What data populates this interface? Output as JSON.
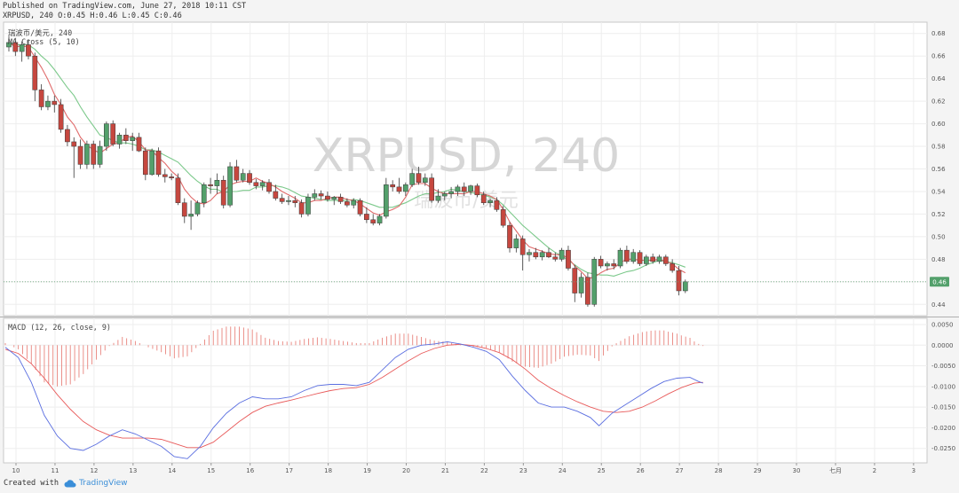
{
  "header": {
    "line1": "Published on TradingView.com, June 27, 2018 10:11 CST",
    "line2": "XRPUSD, 240 O:0.45 H:0.46 L:0.45 C:0.46"
  },
  "footer": {
    "created_with": "Created with",
    "brand": "TradingView"
  },
  "chart_data": {
    "type": "candlestick",
    "symbol_label": "瑞波币/美元, 240",
    "indicator_label": "MA Cross (5, 10)",
    "watermark": "XRPUSD, 240",
    "watermark_sub": "瑞波币/美元",
    "ylim": [
      0.43,
      0.69
    ],
    "y_ticks": [
      "0.68",
      "0.66",
      "0.64",
      "0.62",
      "0.60",
      "0.58",
      "0.56",
      "0.54",
      "0.52",
      "0.50",
      "0.48",
      "0.46",
      "0.44"
    ],
    "last_price": 0.46,
    "last_price_label": "0.46",
    "x_ticks": [
      {
        "label": "10",
        "day": 10
      },
      {
        "label": "11",
        "day": 11
      },
      {
        "label": "12",
        "day": 12
      },
      {
        "label": "13",
        "day": 13
      },
      {
        "label": "14",
        "day": 14
      },
      {
        "label": "15",
        "day": 15
      },
      {
        "label": "16",
        "day": 16
      },
      {
        "label": "17",
        "day": 17
      },
      {
        "label": "18",
        "day": 18
      },
      {
        "label": "19",
        "day": 19
      },
      {
        "label": "20",
        "day": 20
      },
      {
        "label": "21",
        "day": 21
      },
      {
        "label": "22",
        "day": 22
      },
      {
        "label": "23",
        "day": 23
      },
      {
        "label": "24",
        "day": 24
      },
      {
        "label": "25",
        "day": 25
      },
      {
        "label": "26",
        "day": 26
      },
      {
        "label": "27",
        "day": 27
      },
      {
        "label": "28",
        "day": 28
      },
      {
        "label": "29",
        "day": 29
      },
      {
        "label": "30",
        "day": 30
      },
      {
        "label": "七月",
        "day": 31
      },
      {
        "label": "2",
        "day": 32
      },
      {
        "label": "3",
        "day": 33
      }
    ],
    "candles": [
      [
        0.668,
        0.678,
        0.664,
        0.672
      ],
      [
        0.672,
        0.676,
        0.66,
        0.664
      ],
      [
        0.664,
        0.673,
        0.655,
        0.67
      ],
      [
        0.67,
        0.675,
        0.657,
        0.66
      ],
      [
        0.66,
        0.663,
        0.62,
        0.63
      ],
      [
        0.63,
        0.635,
        0.612,
        0.615
      ],
      [
        0.615,
        0.625,
        0.612,
        0.62
      ],
      [
        0.62,
        0.625,
        0.61,
        0.617
      ],
      [
        0.617,
        0.622,
        0.592,
        0.595
      ],
      [
        0.595,
        0.599,
        0.58,
        0.584
      ],
      [
        0.584,
        0.588,
        0.552,
        0.58
      ],
      [
        0.58,
        0.586,
        0.56,
        0.564
      ],
      [
        0.564,
        0.585,
        0.56,
        0.582
      ],
      [
        0.582,
        0.585,
        0.56,
        0.564
      ],
      [
        0.564,
        0.585,
        0.561,
        0.58
      ],
      [
        0.58,
        0.602,
        0.576,
        0.6
      ],
      [
        0.6,
        0.603,
        0.58,
        0.582
      ],
      [
        0.582,
        0.592,
        0.578,
        0.59
      ],
      [
        0.59,
        0.596,
        0.582,
        0.585
      ],
      [
        0.585,
        0.592,
        0.576,
        0.588
      ],
      [
        0.588,
        0.592,
        0.575,
        0.576
      ],
      [
        0.576,
        0.579,
        0.55,
        0.555
      ],
      [
        0.555,
        0.578,
        0.554,
        0.576
      ],
      [
        0.576,
        0.579,
        0.553,
        0.555
      ],
      [
        0.555,
        0.56,
        0.548,
        0.553
      ],
      [
        0.553,
        0.556,
        0.55,
        0.552
      ],
      [
        0.552,
        0.556,
        0.528,
        0.53
      ],
      [
        0.53,
        0.534,
        0.512,
        0.518
      ],
      [
        0.518,
        0.532,
        0.506,
        0.52
      ],
      [
        0.52,
        0.532,
        0.518,
        0.53
      ],
      [
        0.53,
        0.548,
        0.526,
        0.546
      ],
      [
        0.546,
        0.552,
        0.538,
        0.545
      ],
      [
        0.545,
        0.556,
        0.538,
        0.55
      ],
      [
        0.55,
        0.554,
        0.525,
        0.528
      ],
      [
        0.528,
        0.566,
        0.526,
        0.562
      ],
      [
        0.562,
        0.568,
        0.548,
        0.55
      ],
      [
        0.55,
        0.56,
        0.548,
        0.556
      ],
      [
        0.556,
        0.559,
        0.546,
        0.548
      ],
      [
        0.548,
        0.551,
        0.542,
        0.545
      ],
      [
        0.545,
        0.55,
        0.541,
        0.548
      ],
      [
        0.548,
        0.551,
        0.538,
        0.54
      ],
      [
        0.54,
        0.546,
        0.532,
        0.534
      ],
      [
        0.534,
        0.538,
        0.529,
        0.531
      ],
      [
        0.531,
        0.536,
        0.528,
        0.532
      ],
      [
        0.532,
        0.536,
        0.526,
        0.53
      ],
      [
        0.53,
        0.533,
        0.517,
        0.52
      ],
      [
        0.52,
        0.538,
        0.518,
        0.535
      ],
      [
        0.535,
        0.542,
        0.532,
        0.538
      ],
      [
        0.538,
        0.541,
        0.533,
        0.536
      ],
      [
        0.536,
        0.54,
        0.531,
        0.533
      ],
      [
        0.533,
        0.536,
        0.528,
        0.535
      ],
      [
        0.535,
        0.538,
        0.529,
        0.531
      ],
      [
        0.531,
        0.534,
        0.526,
        0.528
      ],
      [
        0.528,
        0.534,
        0.525,
        0.532
      ],
      [
        0.532,
        0.534,
        0.518,
        0.52
      ],
      [
        0.52,
        0.526,
        0.512,
        0.515
      ],
      [
        0.515,
        0.52,
        0.51,
        0.512
      ],
      [
        0.512,
        0.52,
        0.51,
        0.518
      ],
      [
        0.518,
        0.552,
        0.516,
        0.546
      ],
      [
        0.546,
        0.55,
        0.54,
        0.544
      ],
      [
        0.544,
        0.552,
        0.538,
        0.54
      ],
      [
        0.54,
        0.548,
        0.536,
        0.546
      ],
      [
        0.546,
        0.56,
        0.544,
        0.556
      ],
      [
        0.556,
        0.562,
        0.546,
        0.548
      ],
      [
        0.548,
        0.556,
        0.545,
        0.552
      ],
      [
        0.552,
        0.556,
        0.53,
        0.532
      ],
      [
        0.532,
        0.542,
        0.53,
        0.536
      ],
      [
        0.536,
        0.54,
        0.532,
        0.538
      ],
      [
        0.538,
        0.544,
        0.534,
        0.54
      ],
      [
        0.54,
        0.546,
        0.536,
        0.544
      ],
      [
        0.544,
        0.548,
        0.536,
        0.54
      ],
      [
        0.54,
        0.546,
        0.537,
        0.545
      ],
      [
        0.545,
        0.547,
        0.535,
        0.537
      ],
      [
        0.537,
        0.54,
        0.528,
        0.53
      ],
      [
        0.53,
        0.534,
        0.526,
        0.532
      ],
      [
        0.532,
        0.535,
        0.522,
        0.524
      ],
      [
        0.524,
        0.527,
        0.508,
        0.51
      ],
      [
        0.51,
        0.513,
        0.486,
        0.49
      ],
      [
        0.49,
        0.502,
        0.486,
        0.498
      ],
      [
        0.498,
        0.501,
        0.47,
        0.484
      ],
      [
        0.484,
        0.489,
        0.478,
        0.486
      ],
      [
        0.486,
        0.49,
        0.48,
        0.482
      ],
      [
        0.482,
        0.488,
        0.479,
        0.486
      ],
      [
        0.486,
        0.49,
        0.481,
        0.482
      ],
      [
        0.482,
        0.486,
        0.478,
        0.48
      ],
      [
        0.48,
        0.49,
        0.478,
        0.488
      ],
      [
        0.488,
        0.492,
        0.47,
        0.472
      ],
      [
        0.472,
        0.475,
        0.442,
        0.45
      ],
      [
        0.45,
        0.468,
        0.446,
        0.464
      ],
      [
        0.464,
        0.468,
        0.438,
        0.44
      ],
      [
        0.44,
        0.482,
        0.438,
        0.48
      ],
      [
        0.48,
        0.483,
        0.472,
        0.474
      ],
      [
        0.474,
        0.478,
        0.47,
        0.476
      ],
      [
        0.476,
        0.48,
        0.471,
        0.474
      ],
      [
        0.474,
        0.49,
        0.472,
        0.488
      ],
      [
        0.488,
        0.492,
        0.476,
        0.478
      ],
      [
        0.478,
        0.489,
        0.476,
        0.486
      ],
      [
        0.486,
        0.488,
        0.474,
        0.476
      ],
      [
        0.476,
        0.484,
        0.474,
        0.482
      ],
      [
        0.482,
        0.485,
        0.476,
        0.478
      ],
      [
        0.478,
        0.484,
        0.476,
        0.482
      ],
      [
        0.482,
        0.484,
        0.474,
        0.476
      ],
      [
        0.476,
        0.48,
        0.468,
        0.47
      ],
      [
        0.47,
        0.474,
        0.448,
        0.452
      ],
      [
        0.452,
        0.462,
        0.45,
        0.46
      ]
    ],
    "ma_fast": [
      0.672,
      0.668,
      0.669,
      0.668,
      0.659,
      0.65,
      0.639,
      0.626,
      0.617,
      0.606,
      0.599,
      0.588,
      0.581,
      0.577,
      0.574,
      0.578,
      0.582,
      0.583,
      0.588,
      0.589,
      0.584,
      0.577,
      0.576,
      0.57,
      0.565,
      0.558,
      0.553,
      0.542,
      0.535,
      0.53,
      0.529,
      0.532,
      0.538,
      0.54,
      0.546,
      0.548,
      0.549,
      0.549,
      0.552,
      0.549,
      0.547,
      0.544,
      0.54,
      0.537,
      0.534,
      0.53,
      0.53,
      0.532,
      0.532,
      0.534,
      0.535,
      0.535,
      0.533,
      0.532,
      0.529,
      0.525,
      0.521,
      0.519,
      0.522,
      0.524,
      0.527,
      0.535,
      0.546,
      0.547,
      0.547,
      0.543,
      0.54,
      0.538,
      0.538,
      0.538,
      0.538,
      0.54,
      0.54,
      0.538,
      0.536,
      0.533,
      0.524,
      0.513,
      0.505,
      0.497,
      0.491,
      0.489,
      0.487,
      0.485,
      0.484,
      0.484,
      0.481,
      0.474,
      0.469,
      0.463,
      0.464,
      0.468,
      0.471,
      0.472,
      0.477,
      0.48,
      0.48,
      0.479,
      0.479,
      0.479,
      0.48,
      0.478,
      0.476,
      0.471,
      0.468
    ],
    "ma_slow": [
      0.672,
      0.67,
      0.67,
      0.67,
      0.666,
      0.66,
      0.655,
      0.648,
      0.64,
      0.632,
      0.625,
      0.615,
      0.606,
      0.598,
      0.59,
      0.588,
      0.585,
      0.583,
      0.583,
      0.582,
      0.58,
      0.577,
      0.577,
      0.575,
      0.572,
      0.569,
      0.566,
      0.56,
      0.554,
      0.549,
      0.545,
      0.542,
      0.542,
      0.539,
      0.54,
      0.54,
      0.541,
      0.541,
      0.544,
      0.544,
      0.545,
      0.545,
      0.544,
      0.542,
      0.539,
      0.536,
      0.535,
      0.534,
      0.533,
      0.532,
      0.532,
      0.532,
      0.532,
      0.533,
      0.532,
      0.53,
      0.528,
      0.526,
      0.526,
      0.526,
      0.528,
      0.53,
      0.533,
      0.536,
      0.538,
      0.538,
      0.539,
      0.54,
      0.542,
      0.541,
      0.54,
      0.539,
      0.538,
      0.537,
      0.535,
      0.533,
      0.528,
      0.522,
      0.516,
      0.51,
      0.505,
      0.5,
      0.495,
      0.49,
      0.486,
      0.483,
      0.479,
      0.475,
      0.471,
      0.468,
      0.467,
      0.466,
      0.466,
      0.465,
      0.467,
      0.469,
      0.47,
      0.472,
      0.475,
      0.477,
      0.479,
      0.478,
      0.477,
      0.475,
      0.473
    ],
    "macd": {
      "label": "MACD (12, 26, close, 9)",
      "ylim": [
        -0.0285,
        0.0065
      ],
      "y_ticks": [
        "0.0050",
        "0.0000",
        "-0.0050",
        "-0.0100",
        "-0.0150",
        "-0.0200",
        "-0.0250"
      ],
      "macd_line": [
        [
          0,
          -0.0005
        ],
        [
          3,
          -0.003
        ],
        [
          6,
          -0.009
        ],
        [
          9,
          -0.017
        ],
        [
          12,
          -0.022
        ],
        [
          15,
          -0.025
        ],
        [
          18,
          -0.0255
        ],
        [
          21,
          -0.024
        ],
        [
          24,
          -0.022
        ],
        [
          27,
          -0.0205
        ],
        [
          30,
          -0.0215
        ],
        [
          33,
          -0.023
        ],
        [
          36,
          -0.0245
        ],
        [
          39,
          -0.027
        ],
        [
          42,
          -0.0275
        ],
        [
          45,
          -0.0245
        ],
        [
          48,
          -0.02
        ],
        [
          51,
          -0.0165
        ],
        [
          54,
          -0.014
        ],
        [
          57,
          -0.0125
        ],
        [
          60,
          -0.013
        ],
        [
          63,
          -0.013
        ],
        [
          66,
          -0.0125
        ],
        [
          69,
          -0.011
        ],
        [
          72,
          -0.0098
        ],
        [
          75,
          -0.0095
        ],
        [
          78,
          -0.0095
        ],
        [
          81,
          -0.0098
        ],
        [
          84,
          -0.009
        ],
        [
          87,
          -0.006
        ],
        [
          90,
          -0.003
        ],
        [
          93,
          -0.001
        ],
        [
          96,
          0.0
        ],
        [
          99,
          0.0003
        ],
        [
          102,
          0.0008
        ],
        [
          105,
          0.0003
        ],
        [
          108,
          -0.0005
        ],
        [
          111,
          -0.0015
        ],
        [
          114,
          -0.0035
        ],
        [
          117,
          -0.0075
        ],
        [
          120,
          -0.011
        ],
        [
          123,
          -0.014
        ],
        [
          126,
          -0.015
        ],
        [
          129,
          -0.015
        ],
        [
          132,
          -0.016
        ],
        [
          135,
          -0.0175
        ],
        [
          137,
          -0.0195
        ],
        [
          140,
          -0.0165
        ],
        [
          143,
          -0.0145
        ],
        [
          146,
          -0.0125
        ],
        [
          149,
          -0.0105
        ],
        [
          152,
          -0.0088
        ],
        [
          155,
          -0.008
        ],
        [
          158,
          -0.0078
        ],
        [
          160,
          -0.0088
        ],
        [
          161,
          -0.0092
        ]
      ],
      "signal_line": [
        [
          0,
          -0.001
        ],
        [
          3,
          -0.002
        ],
        [
          6,
          -0.0045
        ],
        [
          9,
          -0.008
        ],
        [
          12,
          -0.012
        ],
        [
          15,
          -0.0155
        ],
        [
          18,
          -0.0185
        ],
        [
          21,
          -0.0205
        ],
        [
          24,
          -0.0218
        ],
        [
          27,
          -0.0225
        ],
        [
          30,
          -0.0225
        ],
        [
          33,
          -0.0225
        ],
        [
          36,
          -0.0228
        ],
        [
          39,
          -0.0238
        ],
        [
          42,
          -0.0248
        ],
        [
          45,
          -0.0248
        ],
        [
          48,
          -0.0235
        ],
        [
          51,
          -0.021
        ],
        [
          54,
          -0.0185
        ],
        [
          57,
          -0.0163
        ],
        [
          60,
          -0.0148
        ],
        [
          63,
          -0.014
        ],
        [
          66,
          -0.0133
        ],
        [
          69,
          -0.0125
        ],
        [
          72,
          -0.0117
        ],
        [
          75,
          -0.011
        ],
        [
          78,
          -0.0105
        ],
        [
          81,
          -0.0103
        ],
        [
          84,
          -0.0095
        ],
        [
          87,
          -0.0078
        ],
        [
          90,
          -0.0058
        ],
        [
          93,
          -0.0038
        ],
        [
          96,
          -0.002
        ],
        [
          99,
          -0.0008
        ],
        [
          102,
          0.0
        ],
        [
          105,
          0.0002
        ],
        [
          108,
          -0.0001
        ],
        [
          111,
          -0.0008
        ],
        [
          114,
          -0.0018
        ],
        [
          117,
          -0.0035
        ],
        [
          120,
          -0.0058
        ],
        [
          123,
          -0.0085
        ],
        [
          126,
          -0.0105
        ],
        [
          129,
          -0.0122
        ],
        [
          132,
          -0.0137
        ],
        [
          135,
          -0.015
        ],
        [
          138,
          -0.016
        ],
        [
          141,
          -0.0163
        ],
        [
          144,
          -0.016
        ],
        [
          147,
          -0.015
        ],
        [
          150,
          -0.0135
        ],
        [
          153,
          -0.0118
        ],
        [
          156,
          -0.0103
        ],
        [
          159,
          -0.0092
        ],
        [
          161,
          -0.009
        ]
      ]
    }
  }
}
